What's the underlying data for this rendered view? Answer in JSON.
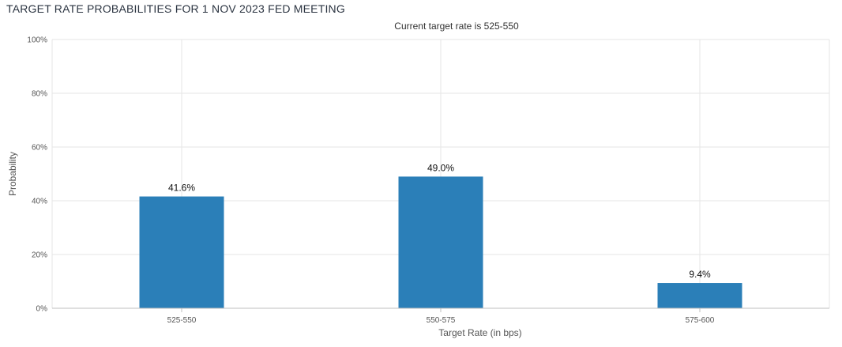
{
  "page": {
    "title": "TARGET RATE PROBABILITIES FOR 1 NOV 2023 FED MEETING"
  },
  "chart_data": {
    "type": "bar",
    "title": "TARGET RATE PROBABILITIES FOR 1 NOV 2023 FED MEETING",
    "subtitle": "Current target rate is 525-550",
    "xlabel": "Target Rate (in bps)",
    "ylabel": "Probability",
    "categories": [
      "525-550",
      "550-575",
      "575-600"
    ],
    "values": [
      41.6,
      49.0,
      9.4
    ],
    "data_labels": [
      "41.6%",
      "49.0%",
      "9.4%"
    ],
    "ylim": [
      0,
      100
    ],
    "yticks": [
      0,
      20,
      40,
      60,
      80,
      100
    ],
    "ytick_labels": [
      "0%",
      "20%",
      "40%",
      "60%",
      "80%",
      "100%"
    ],
    "grid": true,
    "bar_color": "#2b7fb8"
  }
}
